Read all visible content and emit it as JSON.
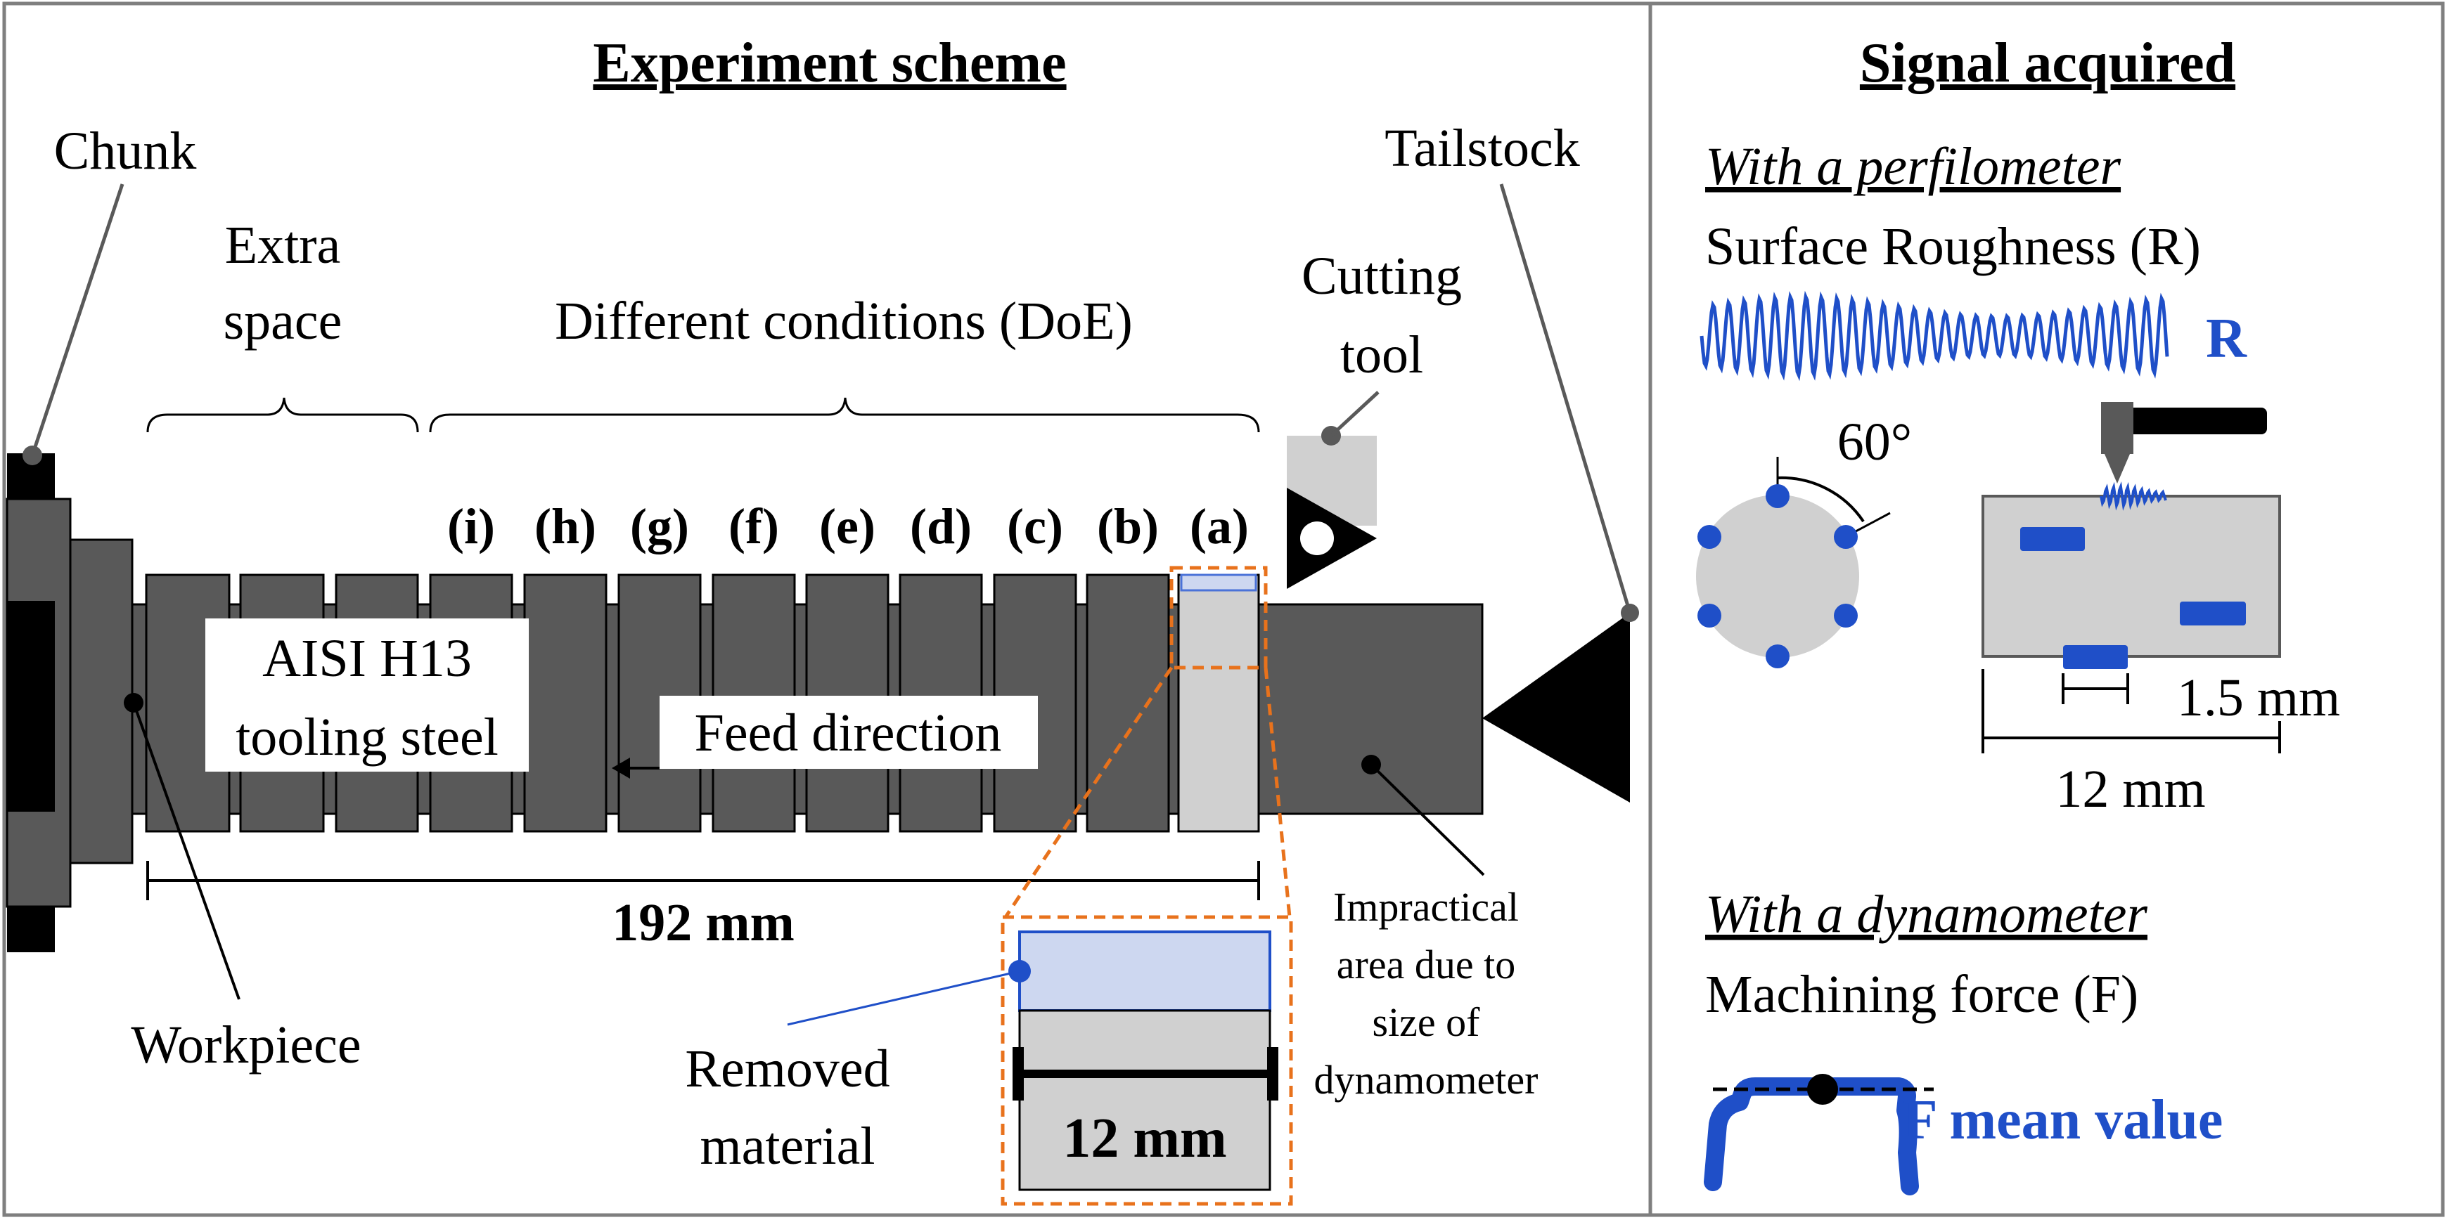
{
  "left_panel": {
    "title": "Experiment scheme",
    "labels": {
      "chunk": "Chunk",
      "tailstock": "Tailstock",
      "extra_space": [
        "Extra",
        "space"
      ],
      "different_conditions": "Different conditions (DoE)",
      "cutting_tool": [
        "Cutting",
        "tool"
      ],
      "material": [
        "AISI H13",
        "tooling steel"
      ],
      "feed_direction": "Feed direction",
      "length": "192 mm",
      "workpiece": "Workpiece",
      "removed_material": [
        "Removed",
        "material"
      ],
      "zoom_length": "12 mm",
      "impractical_area": [
        "Impractical",
        "area due to",
        "size of",
        "dynamometer"
      ]
    },
    "conditions": [
      "(i)",
      "(h)",
      "(g)",
      "(f)",
      "(e)",
      "(d)",
      "(c)",
      "(b)",
      "(a)"
    ]
  },
  "right_panel": {
    "title": "Signal acquired",
    "perfilometer": {
      "heading": "With a perfilometer",
      "measure": "Surface Roughness (R)",
      "symbol": "R",
      "angle": "60°",
      "small_length": "1.5 mm",
      "large_length": "12 mm"
    },
    "dynamometer": {
      "heading": "With a dynamometer",
      "measure": "Machining force (F)",
      "result": "F mean value"
    }
  },
  "colors": {
    "segment_fill": "#595959",
    "dark_fill": "#000000",
    "light_gray": "#d0d0d0",
    "accent_blue": "#1f4fc8",
    "removed_fill": "#cdd7f0",
    "zoom_orange": "#e8721c",
    "border": "#7f7f7f"
  }
}
